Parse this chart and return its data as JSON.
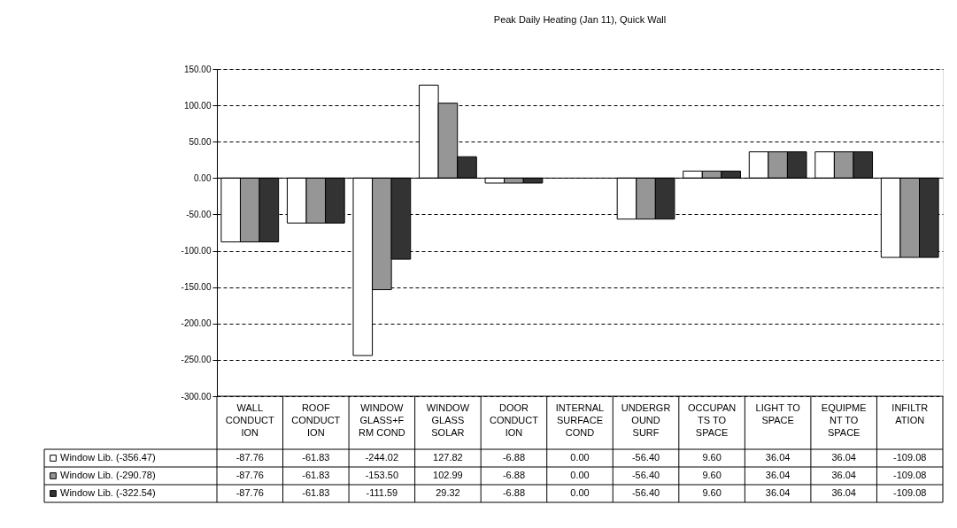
{
  "chart_data": {
    "type": "bar",
    "title": "Peak Daily Heating (Jan 11), Quick Wall",
    "categories": [
      "WALL CONDUCTION",
      "ROOF CONDUCTION",
      "WINDOW GLASS+FRM COND",
      "WINDOW GLASS SOLAR",
      "DOOR CONDUCTION",
      "INTERNAL SURFACE COND",
      "UNDERGROUND SURF",
      "OCCUPANTS TO SPACE",
      "LIGHT TO SPACE",
      "EQUIPMENT TO SPACE",
      "INFILTRATION"
    ],
    "series": [
      {
        "name": "Window Lib. (-356.47)",
        "color": "#ffffff",
        "values": [
          -87.76,
          -61.83,
          -244.02,
          127.82,
          -6.88,
          0.0,
          -56.4,
          9.6,
          36.04,
          36.04,
          -109.08
        ],
        "value_labels": [
          "-87.76",
          "-61.83",
          "-244.02",
          "127.82",
          "-6.88",
          "0.00",
          "-56.40",
          "9.60",
          "36.04",
          "36.04",
          "-109.08"
        ]
      },
      {
        "name": "Window Lib. (-290.78)",
        "color": "#969696",
        "values": [
          -87.76,
          -61.83,
          -153.5,
          102.99,
          -6.88,
          0.0,
          -56.4,
          9.6,
          36.04,
          36.04,
          -109.08
        ],
        "value_labels": [
          "-87.76",
          "-61.83",
          "-153.50",
          "102.99",
          "-6.88",
          "0.00",
          "-56.40",
          "9.60",
          "36.04",
          "36.04",
          "-109.08"
        ]
      },
      {
        "name": "Window Lib. (-322.54)",
        "color": "#333333",
        "values": [
          -87.76,
          -61.83,
          -111.59,
          29.32,
          -6.88,
          0.0,
          -56.4,
          9.6,
          36.04,
          36.04,
          -109.08
        ],
        "value_labels": [
          "-87.76",
          "-61.83",
          "-111.59",
          "29.32",
          "-6.88",
          "0.00",
          "-56.40",
          "9.60",
          "36.04",
          "36.04",
          "-109.08"
        ]
      }
    ],
    "ylim": [
      -300,
      150
    ],
    "yticks": [
      {
        "value": -300,
        "label": "-300.00"
      },
      {
        "value": -250,
        "label": "-250.00"
      },
      {
        "value": -200,
        "label": "-200.00"
      },
      {
        "value": -150,
        "label": "-150.00"
      },
      {
        "value": -100,
        "label": "-100.00"
      },
      {
        "value": -50,
        "label": "-50.00"
      },
      {
        "value": 0,
        "label": "0.00"
      },
      {
        "value": 50,
        "label": "50.00"
      },
      {
        "value": 100,
        "label": "100.00"
      },
      {
        "value": 150,
        "label": "150.00"
      }
    ],
    "grid": "y",
    "line_style": "dashed",
    "legend": "bottom"
  }
}
